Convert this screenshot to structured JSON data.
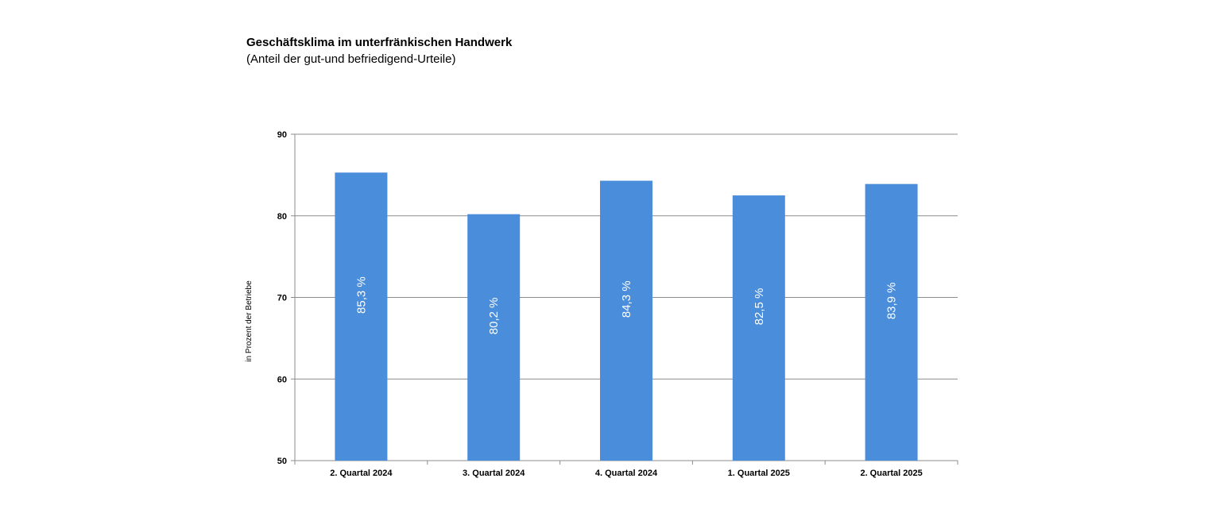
{
  "chart_data": {
    "type": "bar",
    "title": "Geschäftsklima im unterfränkischen Handwerk",
    "subtitle": "(Anteil der gut-und befriedigend-Urteile)",
    "xlabel": "",
    "ylabel": "in Prozent der Betriebe",
    "categories": [
      "2. Quartal 2024",
      "3. Quartal 2024",
      "4. Quartal 2024",
      "1. Quartal 2025",
      "2. Quartal 2025"
    ],
    "values": [
      85.3,
      80.2,
      84.3,
      82.5,
      83.9
    ],
    "data_labels": [
      "85,3 %",
      "80,2 %",
      "84,3 %",
      "82,5 %",
      "83,9 %"
    ],
    "ylim": [
      50,
      90
    ],
    "yticks": [
      50,
      60,
      70,
      80,
      90
    ],
    "grid": true,
    "bar_color": "#4a8ddb"
  }
}
